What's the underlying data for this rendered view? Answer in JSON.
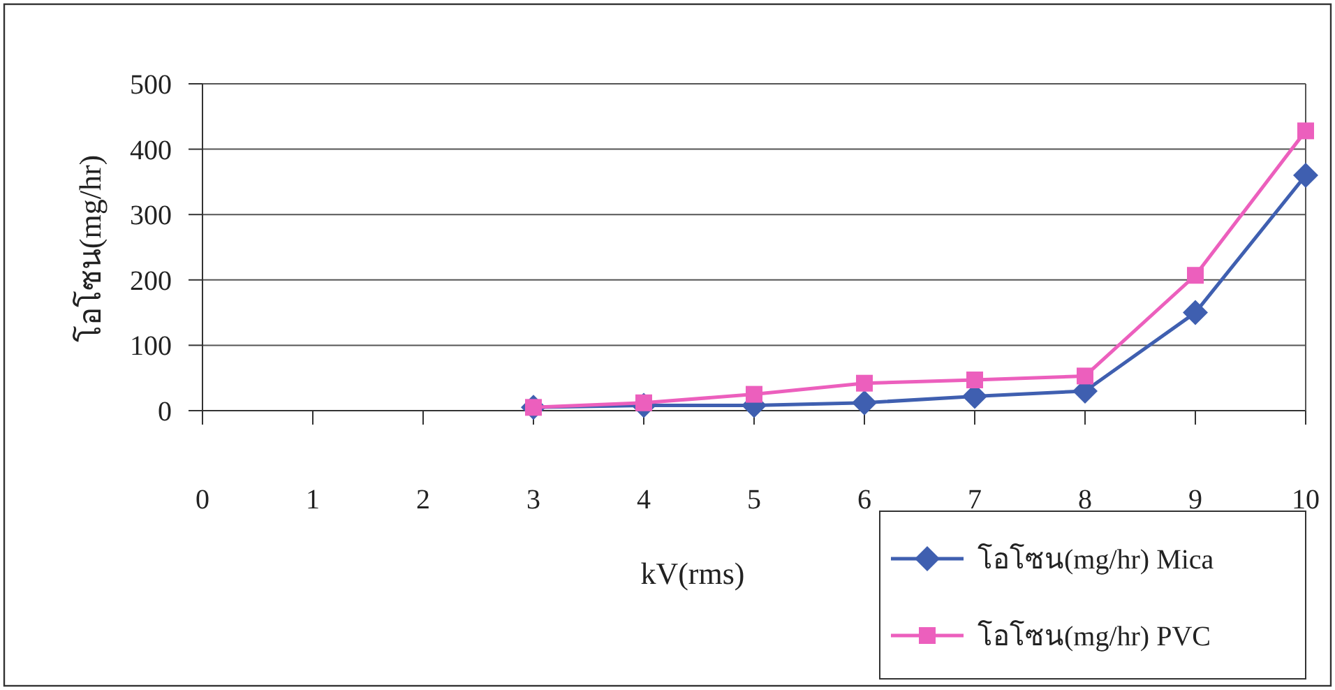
{
  "chart_data": {
    "type": "line",
    "xlabel": "kV(rms)",
    "ylabel": "โอโซน(mg/hr)",
    "xlim": [
      0,
      10
    ],
    "xticks": [
      0,
      1,
      2,
      3,
      4,
      5,
      6,
      7,
      8,
      9,
      10
    ],
    "ylim": [
      0,
      500
    ],
    "yticks": [
      0,
      100,
      200,
      300,
      400,
      500
    ],
    "grid": "y",
    "legend": "bottom right",
    "line_style": "solid",
    "series": [
      {
        "name": "โอโซน(mg/hr) Mica",
        "color": "#3f5fb0",
        "marker": "diamond",
        "x": [
          3,
          4,
          5,
          6,
          7,
          8,
          9,
          10
        ],
        "values": [
          5,
          8,
          8,
          12,
          22,
          30,
          150,
          360
        ]
      },
      {
        "name": "โอโซน(mg/hr) PVC",
        "color": "#ec5fbd",
        "marker": "square",
        "x": [
          3,
          4,
          5,
          6,
          7,
          8,
          9,
          10
        ],
        "values": [
          5,
          12,
          25,
          42,
          47,
          53,
          207,
          428
        ]
      }
    ]
  }
}
